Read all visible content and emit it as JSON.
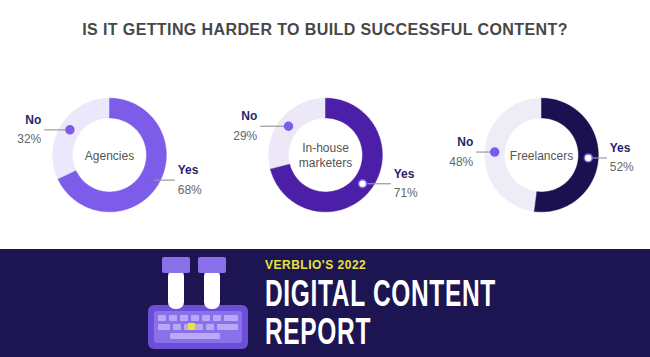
{
  "title": "IS IT GETTING HARDER TO BUILD SUCCESSFUL CONTENT?",
  "chart_data": [
    {
      "type": "donut",
      "title": "Agencies",
      "categories": [
        "No",
        "Yes"
      ],
      "values": [
        32,
        68
      ],
      "value_labels": [
        "32%",
        "68%"
      ],
      "colors": [
        "#ece8fb",
        "#7c5ce8"
      ],
      "data_labels": true,
      "tick_labels": false
    },
    {
      "type": "donut",
      "title": "In-house marketers",
      "categories": [
        "No",
        "Yes"
      ],
      "values": [
        29,
        71
      ],
      "value_labels": [
        "29%",
        "71%"
      ],
      "colors": [
        "#ece8f8",
        "#4c1fa8"
      ],
      "data_labels": true,
      "tick_labels": false
    },
    {
      "type": "donut",
      "title": "Freelancers",
      "categories": [
        "No",
        "Yes"
      ],
      "values": [
        48,
        52
      ],
      "value_labels": [
        "48%",
        "52%"
      ],
      "colors": [
        "#eeecf7",
        "#1b1150"
      ],
      "data_labels": true,
      "tick_labels": false
    }
  ],
  "banner": {
    "subtitle": "VERBLIO'S 2022",
    "title": "DIGITAL CONTENT REPORT"
  }
}
